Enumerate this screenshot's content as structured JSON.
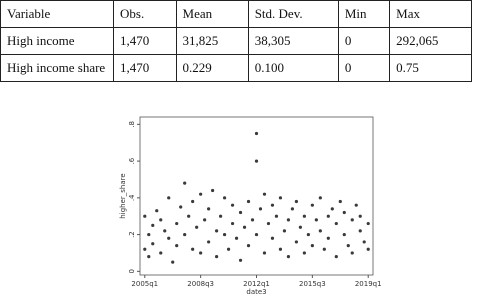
{
  "table": {
    "header": [
      "Variable",
      "Obs.",
      "Mean",
      "Std. Dev.",
      "Min",
      "Max"
    ],
    "rows": [
      [
        "High income",
        "1,470",
        "31,825",
        "38,305",
        "0",
        "292,065"
      ],
      [
        "High income share",
        "1,470",
        "0.229",
        "0.100",
        "0",
        "0.75"
      ]
    ]
  },
  "chart_data": {
    "type": "scatter",
    "xlabel": "date3",
    "ylabel": "higher_share",
    "color": "#3a3a3a",
    "xlim": [
      2004.7,
      2019.3
    ],
    "ylim": [
      -0.02,
      0.84
    ],
    "xticks": [
      {
        "value": 2005,
        "label": "2005q1"
      },
      {
        "value": 2008.5,
        "label": "2008q3"
      },
      {
        "value": 2012,
        "label": "2012q1"
      },
      {
        "value": 2015.5,
        "label": "2015q3"
      },
      {
        "value": 2019,
        "label": "2019q1"
      }
    ],
    "yticks": [
      0,
      {
        "value": 0.2,
        "label": ".2"
      },
      {
        "value": 0.4,
        "label": ".4"
      },
      {
        "value": 0.6,
        "label": ".6"
      },
      {
        "value": 0.8,
        "label": ".8"
      }
    ],
    "x": [
      2005.0,
      2005.0,
      2005.25,
      2005.25,
      2005.5,
      2005.5,
      2005.75,
      2006.0,
      2006.0,
      2006.25,
      2006.5,
      2006.5,
      2006.75,
      2007.0,
      2007.0,
      2007.25,
      2007.5,
      2007.5,
      2007.75,
      2008.0,
      2008.0,
      2008.25,
      2008.5,
      2008.5,
      2008.75,
      2009.0,
      2009.0,
      2009.25,
      2009.5,
      2009.5,
      2009.75,
      2010.0,
      2010.0,
      2010.25,
      2010.5,
      2010.5,
      2010.75,
      2011.0,
      2011.0,
      2011.25,
      2011.5,
      2011.5,
      2011.75,
      2012.0,
      2012.0,
      2012.0,
      2012.25,
      2012.5,
      2012.5,
      2012.75,
      2013.0,
      2013.0,
      2013.25,
      2013.5,
      2013.5,
      2013.75,
      2014.0,
      2014.0,
      2014.25,
      2014.5,
      2014.5,
      2014.75,
      2015.0,
      2015.0,
      2015.25,
      2015.5,
      2015.5,
      2015.75,
      2016.0,
      2016.0,
      2016.25,
      2016.5,
      2016.5,
      2016.75,
      2017.0,
      2017.0,
      2017.25,
      2017.5,
      2017.5,
      2017.75,
      2018.0,
      2018.0,
      2018.25,
      2018.5,
      2018.5,
      2018.75,
      2019.0,
      2019.0
    ],
    "values": [
      0.12,
      0.3,
      0.2,
      0.08,
      0.25,
      0.15,
      0.33,
      0.1,
      0.28,
      0.22,
      0.18,
      0.4,
      0.05,
      0.26,
      0.14,
      0.35,
      0.2,
      0.48,
      0.3,
      0.12,
      0.38,
      0.24,
      0.1,
      0.42,
      0.28,
      0.16,
      0.34,
      0.44,
      0.22,
      0.08,
      0.3,
      0.2,
      0.4,
      0.12,
      0.26,
      0.36,
      0.18,
      0.32,
      0.06,
      0.24,
      0.14,
      0.38,
      0.28,
      0.75,
      0.6,
      0.2,
      0.34,
      0.1,
      0.42,
      0.26,
      0.18,
      0.36,
      0.3,
      0.12,
      0.4,
      0.22,
      0.28,
      0.08,
      0.34,
      0.16,
      0.38,
      0.24,
      0.3,
      0.1,
      0.2,
      0.36,
      0.14,
      0.28,
      0.22,
      0.4,
      0.12,
      0.3,
      0.18,
      0.34,
      0.26,
      0.08,
      0.38,
      0.2,
      0.32,
      0.14,
      0.28,
      0.1,
      0.36,
      0.22,
      0.3,
      0.16,
      0.26,
      0.12
    ]
  }
}
